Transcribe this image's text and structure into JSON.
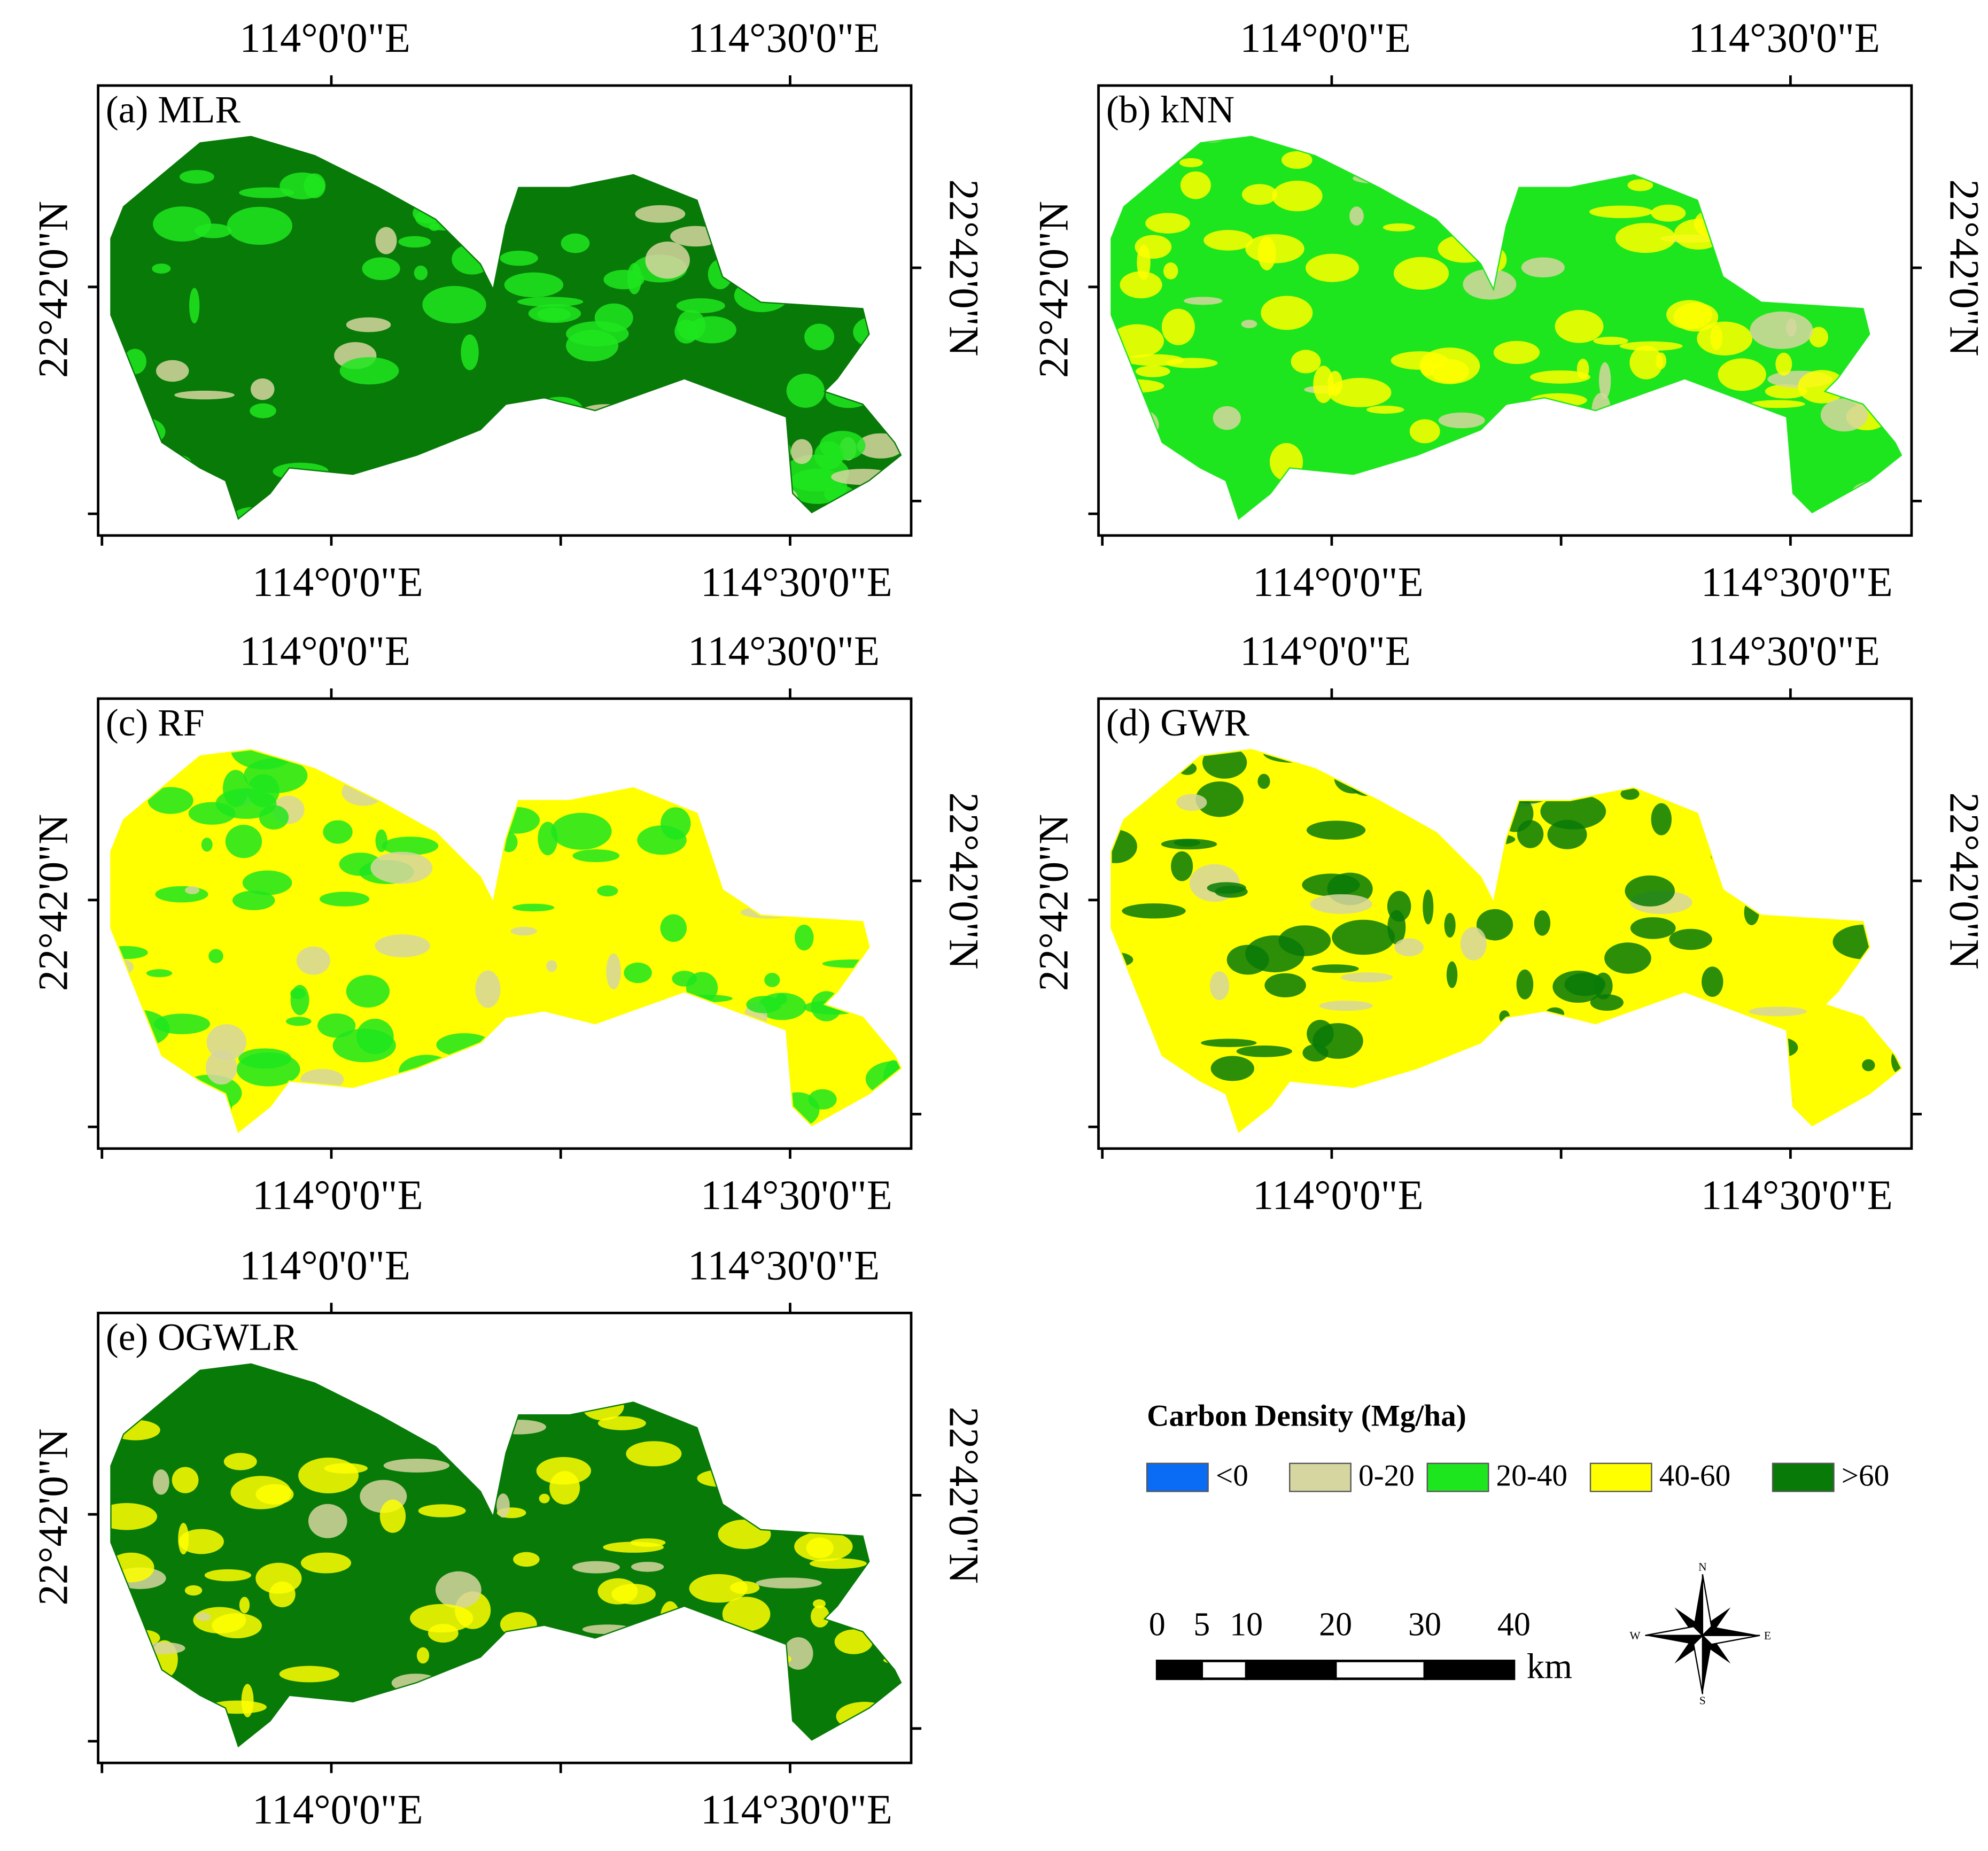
{
  "panels": [
    {
      "label": "(a) MLR",
      "top_labels": [
        "114°0'0\"E",
        "114°30'0\"E"
      ],
      "bottom_labels": [
        "114°0'0\"E",
        "114°30'0\"E"
      ],
      "left_label": "22°42'0\"N",
      "right_label": "22°42'0\"N"
    },
    {
      "label": "(b) kNN",
      "top_labels": [
        "114°0'0\"E",
        "114°30'0\"E"
      ],
      "bottom_labels": [
        "114°0'0\"E",
        "114°30'0\"E"
      ],
      "left_label": "22°42'0\"N",
      "right_label": "22°42'0\"N"
    },
    {
      "label": "(c) RF",
      "top_labels": [
        "114°0'0\"E",
        "114°30'0\"E"
      ],
      "bottom_labels": [
        "114°0'0\"E",
        "114°30'0\"E"
      ],
      "left_label": "22°42'0\"N",
      "right_label": "22°42'0\"N"
    },
    {
      "label": "(d) GWR",
      "top_labels": [
        "114°0'0\"E",
        "114°30'0\"E"
      ],
      "bottom_labels": [
        "114°0'0\"E",
        "114°30'0\"E"
      ],
      "left_label": "22°42'0\"N",
      "right_label": "22°42'0\"N"
    },
    {
      "label": "(e) OGWLR",
      "top_labels": [
        "114°0'0\"E",
        "114°30'0\"E"
      ],
      "bottom_labels": [
        "114°0'0\"E",
        "114°30'0\"E"
      ],
      "left_label": "22°42'0\"N",
      "right_label": "22°42'0\"N"
    }
  ],
  "legend": {
    "title": "Carbon Density (Mg/ha)",
    "items": [
      {
        "label": "<0",
        "color": "#0a6cf5"
      },
      {
        "label": "0-20",
        "color": "#d6d6a0"
      },
      {
        "label": "20-40",
        "color": "#1ee61e"
      },
      {
        "label": "40-60",
        "color": "#ffff00"
      },
      {
        "label": ">60",
        "color": "#087a08"
      }
    ]
  },
  "scale_bar": {
    "ticks": [
      0,
      5,
      10,
      20,
      30,
      40
    ],
    "unit": "km"
  },
  "north_arrow": {
    "n": "N",
    "s": "S",
    "e": "E",
    "w": "W"
  }
}
